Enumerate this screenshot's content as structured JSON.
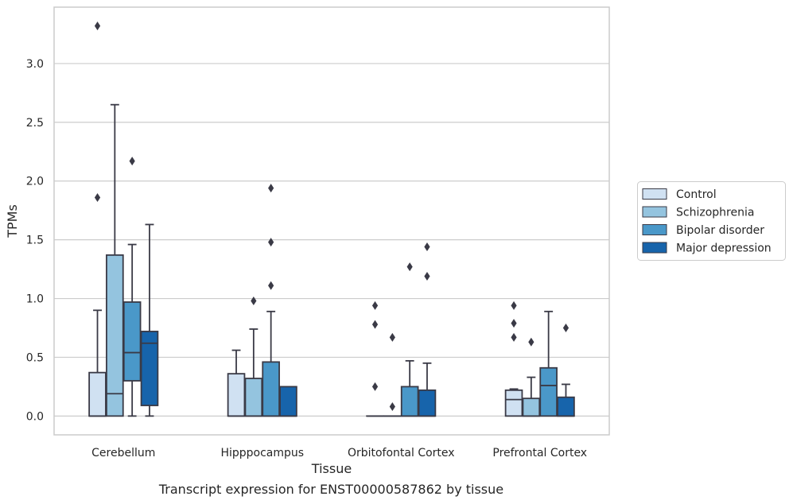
{
  "chart_data": {
    "type": "box",
    "caption": "Transcript expression for ENST00000587862 by tissue",
    "xlabel": "Tissue",
    "ylabel": "TPMs",
    "ylim": [
      -0.16,
      3.48
    ],
    "yticks": [
      "0.0",
      "0.5",
      "1.0",
      "1.5",
      "2.0",
      "2.5",
      "3.0"
    ],
    "grid": true,
    "legend_position": "right",
    "categories": [
      "Cerebellum",
      "Hipppocampus",
      "Orbitofontal Cortex",
      "Prefrontal Cortex"
    ],
    "series": [
      {
        "name": "Control",
        "color": "#d0e1f2",
        "boxes": [
          {
            "q1": 0.0,
            "median": 0.0,
            "q3": 0.37,
            "whisker_low": 0.0,
            "whisker_high": 0.9,
            "outliers": [
              1.86,
              3.32
            ]
          },
          {
            "q1": 0.0,
            "median": 0.0,
            "q3": 0.36,
            "whisker_low": 0.0,
            "whisker_high": 0.56,
            "outliers": []
          },
          {
            "q1": 0.0,
            "median": 0.0,
            "q3": 0.0,
            "whisker_low": 0.0,
            "whisker_high": 0.0,
            "outliers": [
              0.25,
              0.78,
              0.94
            ]
          },
          {
            "q1": 0.0,
            "median": 0.14,
            "q3": 0.22,
            "whisker_low": 0.0,
            "whisker_high": 0.23,
            "outliers": [
              0.67,
              0.79,
              0.94
            ]
          }
        ]
      },
      {
        "name": "Schizophrenia",
        "color": "#94c4df",
        "boxes": [
          {
            "q1": 0.0,
            "median": 0.19,
            "q3": 1.37,
            "whisker_low": 0.0,
            "whisker_high": 2.65,
            "outliers": []
          },
          {
            "q1": 0.0,
            "median": 0.0,
            "q3": 0.32,
            "whisker_low": 0.0,
            "whisker_high": 0.74,
            "outliers": [
              0.98
            ]
          },
          {
            "q1": 0.0,
            "median": 0.0,
            "q3": 0.0,
            "whisker_low": 0.0,
            "whisker_high": 0.0,
            "outliers": [
              0.08,
              0.67
            ]
          },
          {
            "q1": 0.0,
            "median": 0.0,
            "q3": 0.15,
            "whisker_low": 0.0,
            "whisker_high": 0.33,
            "outliers": [
              0.63
            ]
          }
        ]
      },
      {
        "name": "Bipolar disorder",
        "color": "#4a98c9",
        "boxes": [
          {
            "q1": 0.3,
            "median": 0.54,
            "q3": 0.97,
            "whisker_low": 0.0,
            "whisker_high": 1.46,
            "outliers": [
              2.17
            ]
          },
          {
            "q1": 0.0,
            "median": 0.0,
            "q3": 0.46,
            "whisker_low": 0.0,
            "whisker_high": 0.89,
            "outliers": [
              1.11,
              1.48,
              1.94
            ]
          },
          {
            "q1": 0.0,
            "median": 0.0,
            "q3": 0.25,
            "whisker_low": 0.0,
            "whisker_high": 0.47,
            "outliers": [
              1.27
            ]
          },
          {
            "q1": 0.0,
            "median": 0.26,
            "q3": 0.41,
            "whisker_low": 0.0,
            "whisker_high": 0.89,
            "outliers": []
          }
        ]
      },
      {
        "name": "Major depression",
        "color": "#1764ab",
        "boxes": [
          {
            "q1": 0.09,
            "median": 0.62,
            "q3": 0.72,
            "whisker_low": 0.0,
            "whisker_high": 1.63,
            "outliers": []
          },
          {
            "q1": 0.0,
            "median": 0.0,
            "q3": 0.25,
            "whisker_low": 0.0,
            "whisker_high": 0.25,
            "outliers": []
          },
          {
            "q1": 0.0,
            "median": 0.0,
            "q3": 0.22,
            "whisker_low": 0.0,
            "whisker_high": 0.45,
            "outliers": [
              1.19,
              1.44
            ]
          },
          {
            "q1": 0.0,
            "median": 0.0,
            "q3": 0.16,
            "whisker_low": 0.0,
            "whisker_high": 0.27,
            "outliers": [
              0.75
            ]
          }
        ]
      }
    ]
  }
}
